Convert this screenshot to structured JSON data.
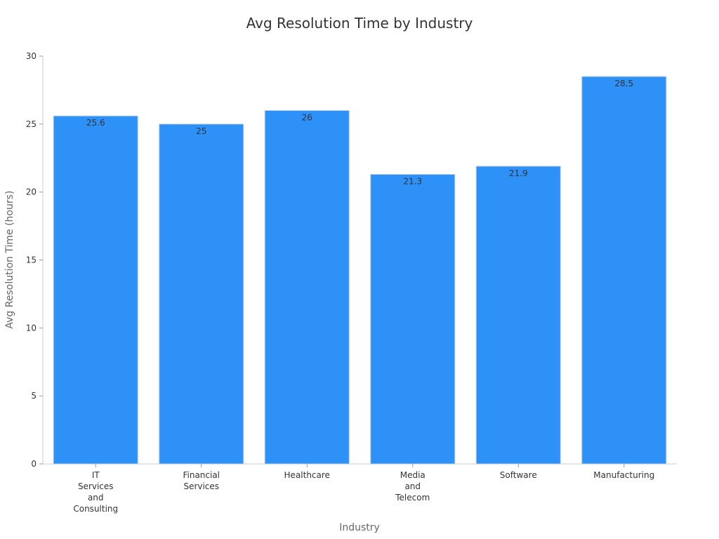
{
  "chart_data": {
    "type": "bar",
    "title": "Avg Resolution Time by Industry",
    "xlabel": "Industry",
    "ylabel": "Avg Resolution Time (hours)",
    "categories": [
      [
        "IT",
        "Services",
        "and",
        "Consulting"
      ],
      [
        "Financial",
        "Services"
      ],
      [
        "Healthcare"
      ],
      [
        "Media",
        "and",
        "Telecom"
      ],
      [
        "Software"
      ],
      [
        "Manufacturing"
      ]
    ],
    "values": [
      25.6,
      25,
      26,
      21.3,
      21.9,
      28.5
    ],
    "value_labels": [
      "25.6",
      "25",
      "26",
      "21.3",
      "21.9",
      "28.5"
    ],
    "ylim": [
      0,
      30
    ],
    "yticks": [
      0,
      5,
      10,
      15,
      20,
      25,
      30
    ],
    "grid": false,
    "legend": "none",
    "bar_color": "#2e91f8",
    "bar_edge_color": "#b0cde8"
  }
}
